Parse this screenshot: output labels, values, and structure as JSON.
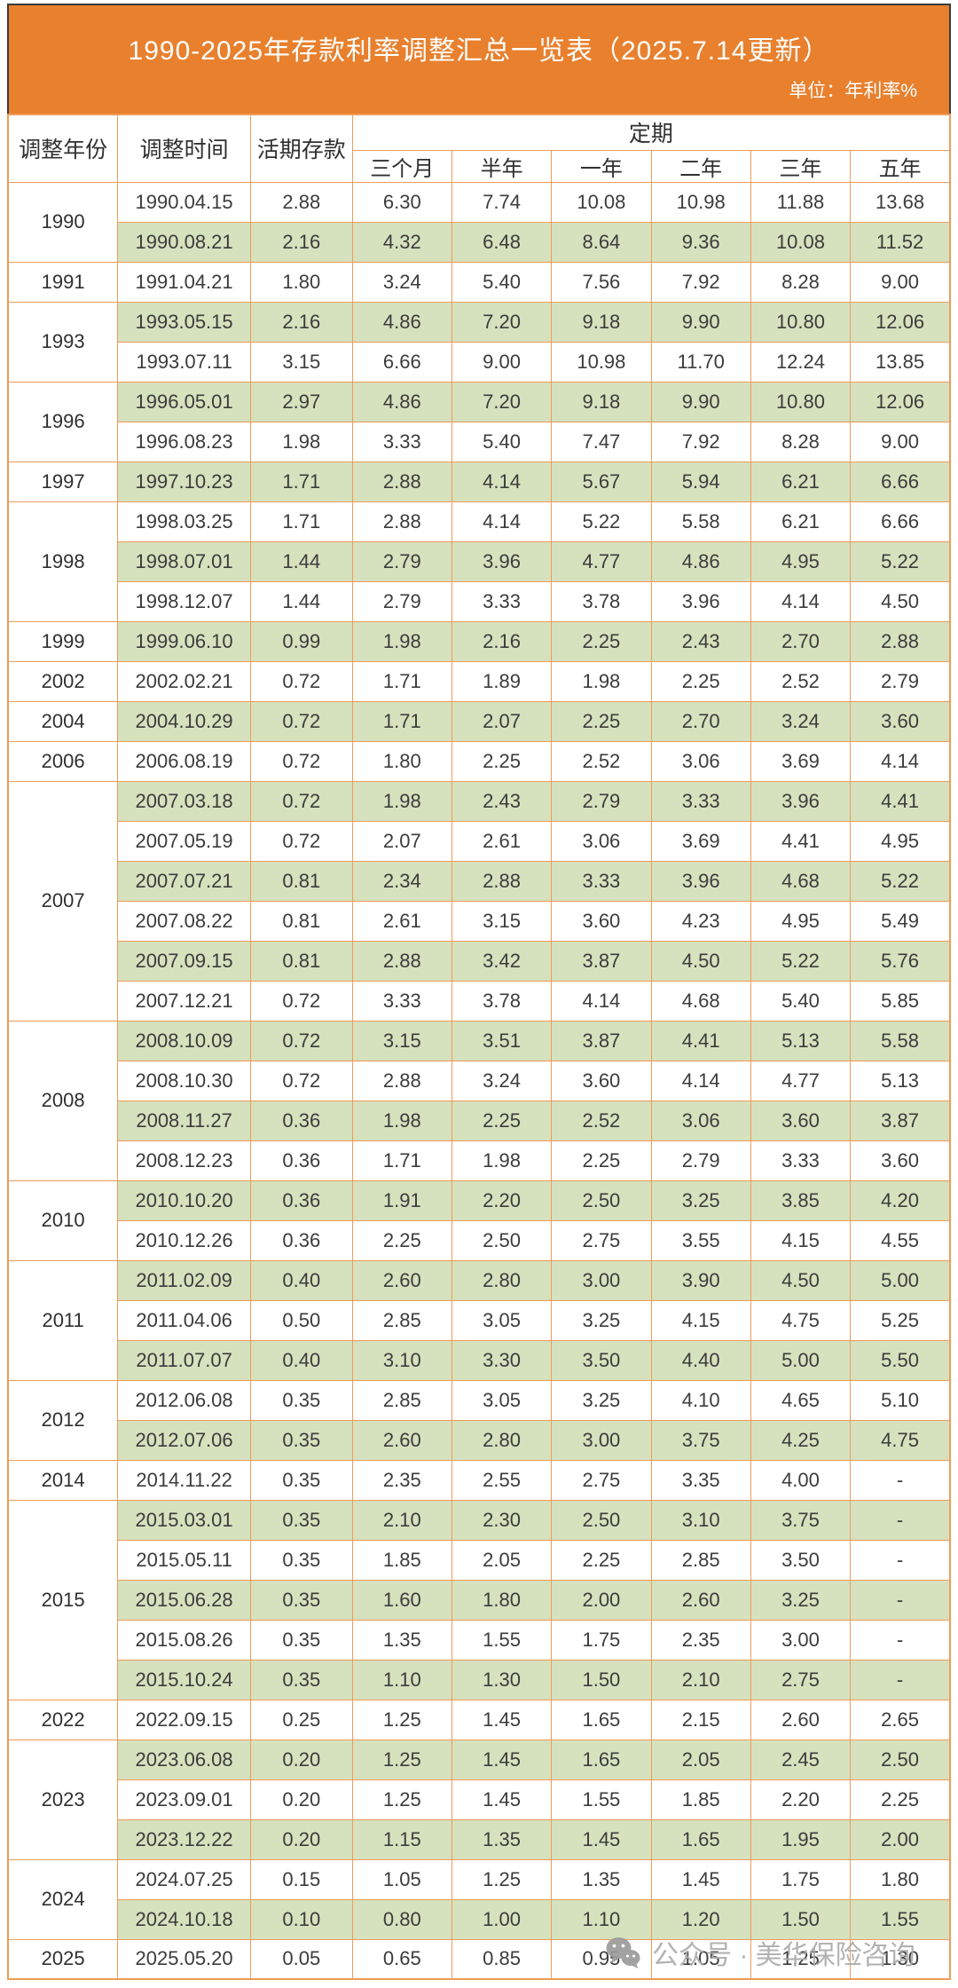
{
  "banner": {
    "title": "1990-2025年存款利率调整汇总一览表（2025.7.14更新）",
    "unit": "单位：年利率%"
  },
  "table": {
    "header": {
      "year": "调整年份",
      "time": "调整时间",
      "demand": "活期存款",
      "fixed_group": "定期",
      "fixed_terms": [
        "三个月",
        "半年",
        "一年",
        "二年",
        "三年",
        "五年"
      ]
    },
    "groups": [
      {
        "year": "1990",
        "rows": [
          {
            "date": "1990.04.15",
            "rates": [
              "2.88",
              "6.30",
              "7.74",
              "10.08",
              "10.98",
              "11.88",
              "13.68"
            ]
          },
          {
            "date": "1990.08.21",
            "rates": [
              "2.16",
              "4.32",
              "6.48",
              "8.64",
              "9.36",
              "10.08",
              "11.52"
            ]
          }
        ]
      },
      {
        "year": "1991",
        "rows": [
          {
            "date": "1991.04.21",
            "rates": [
              "1.80",
              "3.24",
              "5.40",
              "7.56",
              "7.92",
              "8.28",
              "9.00"
            ]
          }
        ]
      },
      {
        "year": "1993",
        "rows": [
          {
            "date": "1993.05.15",
            "rates": [
              "2.16",
              "4.86",
              "7.20",
              "9.18",
              "9.90",
              "10.80",
              "12.06"
            ]
          },
          {
            "date": "1993.07.11",
            "rates": [
              "3.15",
              "6.66",
              "9.00",
              "10.98",
              "11.70",
              "12.24",
              "13.85"
            ]
          }
        ]
      },
      {
        "year": "1996",
        "rows": [
          {
            "date": "1996.05.01",
            "rates": [
              "2.97",
              "4.86",
              "7.20",
              "9.18",
              "9.90",
              "10.80",
              "12.06"
            ]
          },
          {
            "date": "1996.08.23",
            "rates": [
              "1.98",
              "3.33",
              "5.40",
              "7.47",
              "7.92",
              "8.28",
              "9.00"
            ]
          }
        ]
      },
      {
        "year": "1997",
        "rows": [
          {
            "date": "1997.10.23",
            "rates": [
              "1.71",
              "2.88",
              "4.14",
              "5.67",
              "5.94",
              "6.21",
              "6.66"
            ]
          }
        ]
      },
      {
        "year": "1998",
        "rows": [
          {
            "date": "1998.03.25",
            "rates": [
              "1.71",
              "2.88",
              "4.14",
              "5.22",
              "5.58",
              "6.21",
              "6.66"
            ]
          },
          {
            "date": "1998.07.01",
            "rates": [
              "1.44",
              "2.79",
              "3.96",
              "4.77",
              "4.86",
              "4.95",
              "5.22"
            ]
          },
          {
            "date": "1998.12.07",
            "rates": [
              "1.44",
              "2.79",
              "3.33",
              "3.78",
              "3.96",
              "4.14",
              "4.50"
            ]
          }
        ]
      },
      {
        "year": "1999",
        "rows": [
          {
            "date": "1999.06.10",
            "rates": [
              "0.99",
              "1.98",
              "2.16",
              "2.25",
              "2.43",
              "2.70",
              "2.88"
            ]
          }
        ]
      },
      {
        "year": "2002",
        "rows": [
          {
            "date": "2002.02.21",
            "rates": [
              "0.72",
              "1.71",
              "1.89",
              "1.98",
              "2.25",
              "2.52",
              "2.79"
            ]
          }
        ]
      },
      {
        "year": "2004",
        "rows": [
          {
            "date": "2004.10.29",
            "rates": [
              "0.72",
              "1.71",
              "2.07",
              "2.25",
              "2.70",
              "3.24",
              "3.60"
            ]
          }
        ]
      },
      {
        "year": "2006",
        "rows": [
          {
            "date": "2006.08.19",
            "rates": [
              "0.72",
              "1.80",
              "2.25",
              "2.52",
              "3.06",
              "3.69",
              "4.14"
            ]
          }
        ]
      },
      {
        "year": "2007",
        "rows": [
          {
            "date": "2007.03.18",
            "rates": [
              "0.72",
              "1.98",
              "2.43",
              "2.79",
              "3.33",
              "3.96",
              "4.41"
            ]
          },
          {
            "date": "2007.05.19",
            "rates": [
              "0.72",
              "2.07",
              "2.61",
              "3.06",
              "3.69",
              "4.41",
              "4.95"
            ]
          },
          {
            "date": "2007.07.21",
            "rates": [
              "0.81",
              "2.34",
              "2.88",
              "3.33",
              "3.96",
              "4.68",
              "5.22"
            ]
          },
          {
            "date": "2007.08.22",
            "rates": [
              "0.81",
              "2.61",
              "3.15",
              "3.60",
              "4.23",
              "4.95",
              "5.49"
            ]
          },
          {
            "date": "2007.09.15",
            "rates": [
              "0.81",
              "2.88",
              "3.42",
              "3.87",
              "4.50",
              "5.22",
              "5.76"
            ]
          },
          {
            "date": "2007.12.21",
            "rates": [
              "0.72",
              "3.33",
              "3.78",
              "4.14",
              "4.68",
              "5.40",
              "5.85"
            ]
          }
        ]
      },
      {
        "year": "2008",
        "rows": [
          {
            "date": "2008.10.09",
            "rates": [
              "0.72",
              "3.15",
              "3.51",
              "3.87",
              "4.41",
              "5.13",
              "5.58"
            ]
          },
          {
            "date": "2008.10.30",
            "rates": [
              "0.72",
              "2.88",
              "3.24",
              "3.60",
              "4.14",
              "4.77",
              "5.13"
            ]
          },
          {
            "date": "2008.11.27",
            "rates": [
              "0.36",
              "1.98",
              "2.25",
              "2.52",
              "3.06",
              "3.60",
              "3.87"
            ]
          },
          {
            "date": "2008.12.23",
            "rates": [
              "0.36",
              "1.71",
              "1.98",
              "2.25",
              "2.79",
              "3.33",
              "3.60"
            ]
          }
        ]
      },
      {
        "year": "2010",
        "rows": [
          {
            "date": "2010.10.20",
            "rates": [
              "0.36",
              "1.91",
              "2.20",
              "2.50",
              "3.25",
              "3.85",
              "4.20"
            ]
          },
          {
            "date": "2010.12.26",
            "rates": [
              "0.36",
              "2.25",
              "2.50",
              "2.75",
              "3.55",
              "4.15",
              "4.55"
            ]
          }
        ]
      },
      {
        "year": "2011",
        "rows": [
          {
            "date": "2011.02.09",
            "rates": [
              "0.40",
              "2.60",
              "2.80",
              "3.00",
              "3.90",
              "4.50",
              "5.00"
            ]
          },
          {
            "date": "2011.04.06",
            "rates": [
              "0.50",
              "2.85",
              "3.05",
              "3.25",
              "4.15",
              "4.75",
              "5.25"
            ]
          },
          {
            "date": "2011.07.07",
            "rates": [
              "0.40",
              "3.10",
              "3.30",
              "3.50",
              "4.40",
              "5.00",
              "5.50"
            ]
          }
        ]
      },
      {
        "year": "2012",
        "rows": [
          {
            "date": "2012.06.08",
            "rates": [
              "0.35",
              "2.85",
              "3.05",
              "3.25",
              "4.10",
              "4.65",
              "5.10"
            ]
          },
          {
            "date": "2012.07.06",
            "rates": [
              "0.35",
              "2.60",
              "2.80",
              "3.00",
              "3.75",
              "4.25",
              "4.75"
            ]
          }
        ]
      },
      {
        "year": "2014",
        "rows": [
          {
            "date": "2014.11.22",
            "rates": [
              "0.35",
              "2.35",
              "2.55",
              "2.75",
              "3.35",
              "4.00",
              "-"
            ]
          }
        ]
      },
      {
        "year": "2015",
        "rows": [
          {
            "date": "2015.03.01",
            "rates": [
              "0.35",
              "2.10",
              "2.30",
              "2.50",
              "3.10",
              "3.75",
              "-"
            ]
          },
          {
            "date": "2015.05.11",
            "rates": [
              "0.35",
              "1.85",
              "2.05",
              "2.25",
              "2.85",
              "3.50",
              "-"
            ]
          },
          {
            "date": "2015.06.28",
            "rates": [
              "0.35",
              "1.60",
              "1.80",
              "2.00",
              "2.60",
              "3.25",
              "-"
            ]
          },
          {
            "date": "2015.08.26",
            "rates": [
              "0.35",
              "1.35",
              "1.55",
              "1.75",
              "2.35",
              "3.00",
              "-"
            ]
          },
          {
            "date": "2015.10.24",
            "rates": [
              "0.35",
              "1.10",
              "1.30",
              "1.50",
              "2.10",
              "2.75",
              "-"
            ]
          }
        ]
      },
      {
        "year": "2022",
        "rows": [
          {
            "date": "2022.09.15",
            "rates": [
              "0.25",
              "1.25",
              "1.45",
              "1.65",
              "2.15",
              "2.60",
              "2.65"
            ]
          }
        ]
      },
      {
        "year": "2023",
        "rows": [
          {
            "date": "2023.06.08",
            "rates": [
              "0.20",
              "1.25",
              "1.45",
              "1.65",
              "2.05",
              "2.45",
              "2.50"
            ]
          },
          {
            "date": "2023.09.01",
            "rates": [
              "0.20",
              "1.25",
              "1.45",
              "1.55",
              "1.85",
              "2.20",
              "2.25"
            ]
          },
          {
            "date": "2023.12.22",
            "rates": [
              "0.20",
              "1.15",
              "1.35",
              "1.45",
              "1.65",
              "1.95",
              "2.00"
            ]
          }
        ]
      },
      {
        "year": "2024",
        "rows": [
          {
            "date": "2024.07.25",
            "rates": [
              "0.15",
              "1.05",
              "1.25",
              "1.35",
              "1.45",
              "1.75",
              "1.80"
            ]
          },
          {
            "date": "2024.10.18",
            "rates": [
              "0.10",
              "0.80",
              "1.00",
              "1.10",
              "1.20",
              "1.50",
              "1.55"
            ]
          }
        ]
      },
      {
        "year": "2025",
        "rows": [
          {
            "date": "2025.05.20",
            "rates": [
              "0.05",
              "0.65",
              "0.85",
              "0.95",
              "1.05",
              "1.25",
              "1.30"
            ]
          }
        ]
      }
    ]
  },
  "watermark": {
    "icon": "wechat-icon",
    "text": "公众号 · 美华保险咨询"
  },
  "colors": {
    "banner_bg": "#E8802E",
    "banner_outline": "#3B3B3B",
    "grid_border": "#EE9C58",
    "stripe_green": "#D6E1BE",
    "text": "#3C3C3C",
    "watermark_gray": "#ACACAC"
  }
}
